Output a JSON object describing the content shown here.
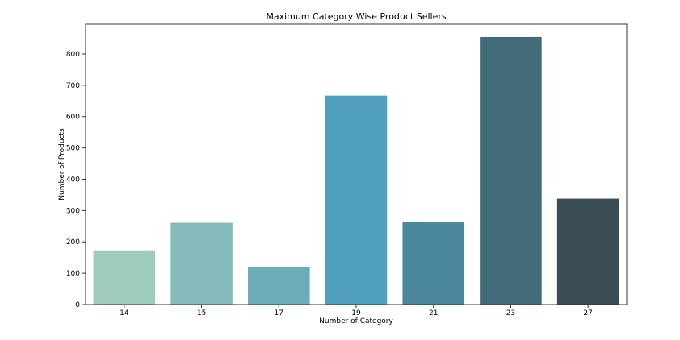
{
  "chart_data": {
    "type": "bar",
    "title": "Maximum Category Wise Product Sellers",
    "xlabel": "Number of Category",
    "ylabel": "Number of Products",
    "categories": [
      "14",
      "15",
      "17",
      "19",
      "21",
      "23",
      "27"
    ],
    "values": [
      173,
      261,
      121,
      667,
      265,
      854,
      338
    ],
    "colors": [
      "#9ecbbc",
      "#85bbbb",
      "#6cacb9",
      "#509fbd",
      "#4a879c",
      "#426c7a",
      "#3a4c53"
    ],
    "ylim": [
      0,
      895
    ],
    "yticks": [
      0,
      100,
      200,
      300,
      400,
      500,
      600,
      700,
      800
    ],
    "grid": false,
    "legend": "none"
  }
}
